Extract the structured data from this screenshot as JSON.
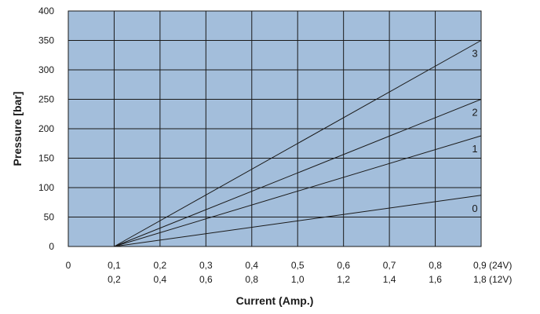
{
  "chart_data": {
    "type": "line",
    "title": "",
    "xlabel": "Current (Amp.)",
    "ylabel": "Pressure  [bar]",
    "xlim": [
      0,
      0.9
    ],
    "ylim": [
      0,
      400
    ],
    "grid": true,
    "legend": "none",
    "x_ticks": [
      0,
      0.1,
      0.2,
      0.3,
      0.4,
      0.5,
      0.6,
      0.7,
      0.8,
      0.9
    ],
    "x_tick_labels_24v": [
      "0",
      "0,1",
      "0,2",
      "0,3",
      "0,4",
      "0,5",
      "0,6",
      "0,7",
      "0,8",
      "0,9 (24V)"
    ],
    "x_tick_labels_12v": [
      "",
      "0,2",
      "0,4",
      "0,6",
      "0,8",
      "1,0",
      "1,2",
      "1,4",
      "1,6",
      "1,8 (12V)"
    ],
    "y_ticks": [
      0,
      50,
      100,
      150,
      200,
      250,
      300,
      350,
      400
    ],
    "y_tick_labels": [
      "0",
      "50",
      "100",
      "150",
      "200",
      "250",
      "300",
      "350",
      "400"
    ],
    "series": [
      {
        "label": "0",
        "x": [
          0.1,
          0.9
        ],
        "y": [
          0,
          87
        ]
      },
      {
        "label": "1",
        "x": [
          0.1,
          0.9
        ],
        "y": [
          0,
          188
        ]
      },
      {
        "label": "2",
        "x": [
          0.1,
          0.9
        ],
        "y": [
          0,
          250
        ]
      },
      {
        "label": "3",
        "x": [
          0.1,
          0.9
        ],
        "y": [
          0,
          350
        ]
      }
    ],
    "colors": {
      "plot_bg": "#a3bedb",
      "grid": "#1a1a1a",
      "line": "#1a1a1a"
    }
  }
}
